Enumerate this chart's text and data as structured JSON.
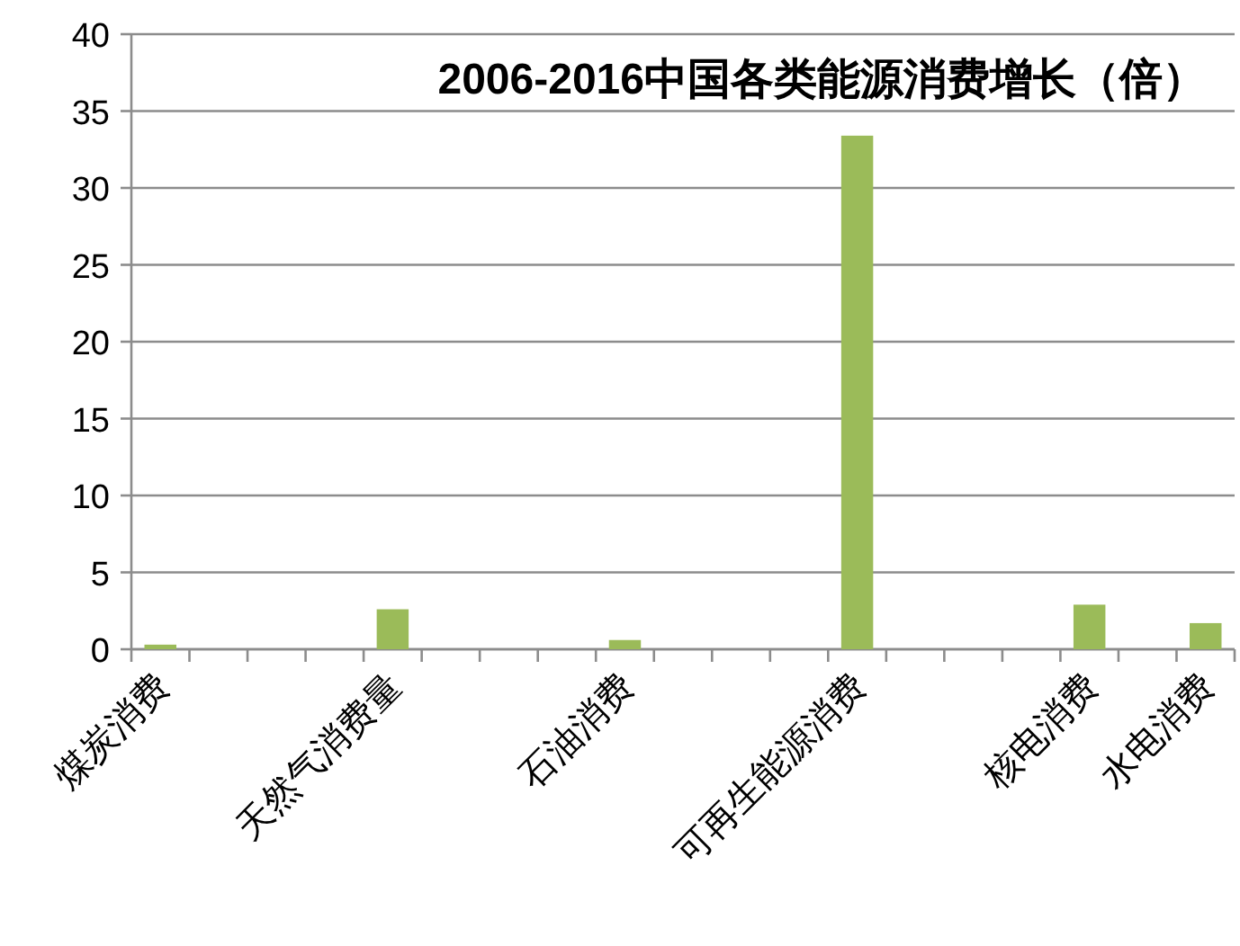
{
  "chart_data": {
    "type": "bar",
    "title": "2006-2016中国各类能源消费增长（倍）",
    "categories": [
      "煤炭消费",
      null,
      null,
      null,
      "天然气消费量",
      null,
      null,
      null,
      "石油消费",
      null,
      null,
      null,
      "可再生能源消费",
      null,
      null,
      null,
      "核电消费",
      null,
      "水电消费"
    ],
    "values": [
      0.3,
      null,
      null,
      null,
      2.6,
      null,
      null,
      null,
      0.6,
      null,
      null,
      null,
      33.4,
      null,
      null,
      null,
      2.9,
      null,
      1.7
    ],
    "color": "#9bbb59",
    "ylim": [
      0,
      40
    ],
    "yticks": [
      0,
      5,
      10,
      15,
      20,
      25,
      30,
      35,
      40
    ],
    "grid": "y"
  }
}
